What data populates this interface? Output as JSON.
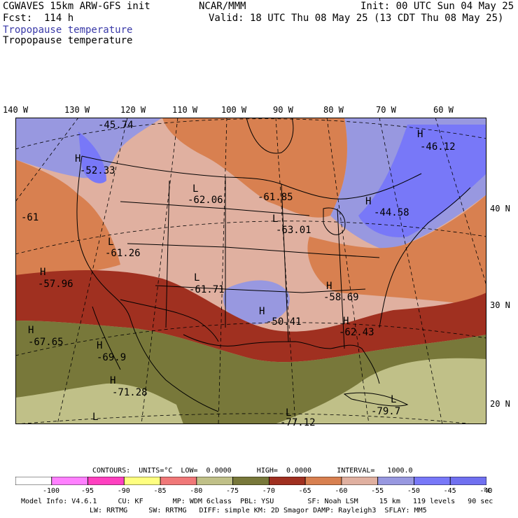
{
  "header": {
    "model": "CGWAVES 15km ARW-GFS init",
    "fcst": "Fcst:  114 h",
    "org": "NCAR/MMM",
    "init": "Init: 00 UTC Sun 04 May 25",
    "valid": "Valid: 18 UTC Thu 08 May 25 (13 CDT Thu 08 May 25)",
    "field1": "Tropopause temperature",
    "field2": "Tropopause temperature"
  },
  "map": {
    "lon_labels": [
      "140 W",
      "130 W",
      "120 W",
      "110 W",
      "100 W",
      "90 W",
      "80 W",
      "70 W",
      "60 W"
    ],
    "lat_labels": [
      "40 N",
      "30 N",
      "20 N"
    ],
    "labels": [
      {
        "t": "-45.74"
      },
      {
        "t": "H"
      },
      {
        "t": "-52.33"
      },
      {
        "t": "L"
      },
      {
        "t": "-62.06"
      },
      {
        "t": "-61.85"
      },
      {
        "t": "L"
      },
      {
        "t": "-63.01"
      },
      {
        "t": "H"
      },
      {
        "t": "-44.58"
      },
      {
        "t": "H"
      },
      {
        "t": "-46.12"
      },
      {
        "t": "-61"
      },
      {
        "t": "L"
      },
      {
        "t": "-61.26"
      },
      {
        "t": "H"
      },
      {
        "t": "-57.96"
      },
      {
        "t": "L"
      },
      {
        "t": "-61.71"
      },
      {
        "t": "H"
      },
      {
        "t": "-58.69"
      },
      {
        "t": "H"
      },
      {
        "t": "-50.41"
      },
      {
        "t": "H"
      },
      {
        "t": "-62.43"
      },
      {
        "t": "H"
      },
      {
        "t": "-67.65"
      },
      {
        "t": "H"
      },
      {
        "t": "-69.9"
      },
      {
        "t": "H"
      },
      {
        "t": "-71.28"
      },
      {
        "t": "L"
      },
      {
        "t": "L"
      },
      {
        "t": "-77.12"
      },
      {
        "t": "L"
      },
      {
        "t": "-79.7"
      }
    ]
  },
  "contours": "CONTOURS:  UNITS=°C  LOW=  0.0000      HIGH=  0.0000      INTERVAL=   1000.0",
  "colorbar": {
    "colors": [
      "#ffffff",
      "#ff80ff",
      "#ff40c0",
      "#ffff80",
      "#f07878",
      "#c0c088",
      "#78783a",
      "#a03020",
      "#d88050",
      "#e0b0a0",
      "#9898e0",
      "#7878f8",
      "#7070f0"
    ],
    "labels": [
      "-100",
      "-95",
      "-90",
      "-85",
      "-80",
      "-75",
      "-70",
      "-65",
      "-60",
      "-55",
      "-50",
      "-45",
      "-40"
    ],
    "unit": "°C"
  },
  "footer": {
    "line1": "Model Info: V4.6.1     CU: KF       MP: WDM 6class  PBL: YSU        SF: Noah LSM     15 km   119 levels   90 sec",
    "line2": "LW: RRTMG     SW: RRTMG   DIFF: simple KM: 2D Smagor DAMP: Rayleigh3  SFLAY: MM5"
  }
}
